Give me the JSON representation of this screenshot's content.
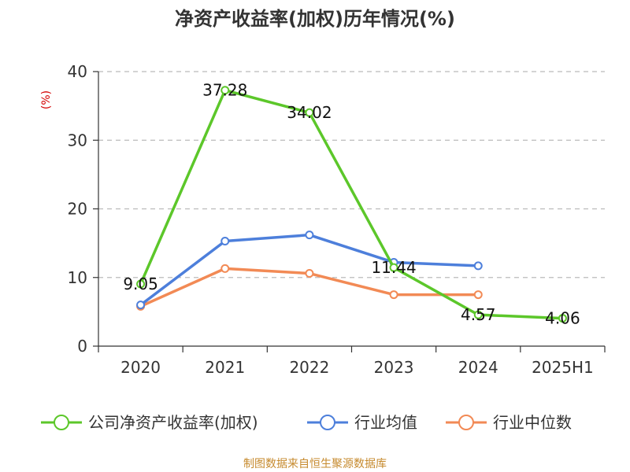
{
  "title": "净资产收益率(加权)历年情况(%)",
  "source": "制图数据来自恒生聚源数据库",
  "chart_data": {
    "type": "line",
    "unit_label": "(%)",
    "categories": [
      "2020",
      "2021",
      "2022",
      "2023",
      "2024",
      "2025H1"
    ],
    "ylim": [
      0,
      40
    ],
    "yticks": [
      0,
      10,
      20,
      30,
      40
    ],
    "grid": true,
    "legend_position": "bottom",
    "series": [
      {
        "name": "公司净资产收益率(加权)",
        "color": "#5cc72a",
        "values": [
          9.05,
          37.28,
          34.02,
          11.44,
          4.57,
          4.06
        ],
        "show_labels": true
      },
      {
        "name": "行业均值",
        "color": "#4d7fdb",
        "values": [
          6.0,
          15.3,
          16.2,
          12.2,
          11.7,
          null
        ],
        "show_labels": false
      },
      {
        "name": "行业中位数",
        "color": "#f28a55",
        "values": [
          5.8,
          11.3,
          10.6,
          7.5,
          7.5,
          null
        ],
        "show_labels": false
      }
    ]
  }
}
